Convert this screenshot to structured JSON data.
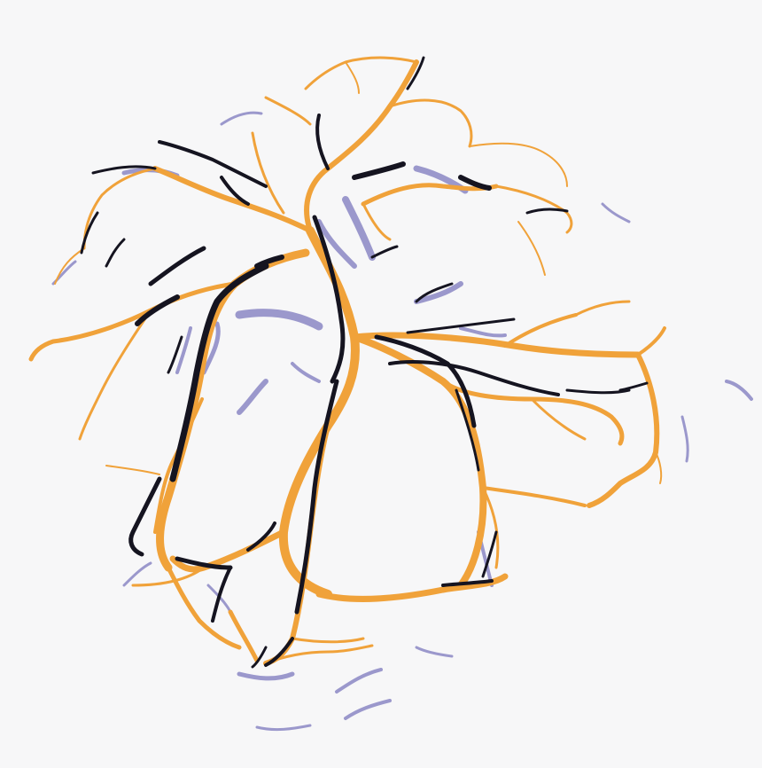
{
  "image": {
    "description_colors": {
      "background": "#f7f7f8",
      "orange": "#f0a23a",
      "black": "#151420",
      "lavender": "#9b98cc"
    }
  }
}
